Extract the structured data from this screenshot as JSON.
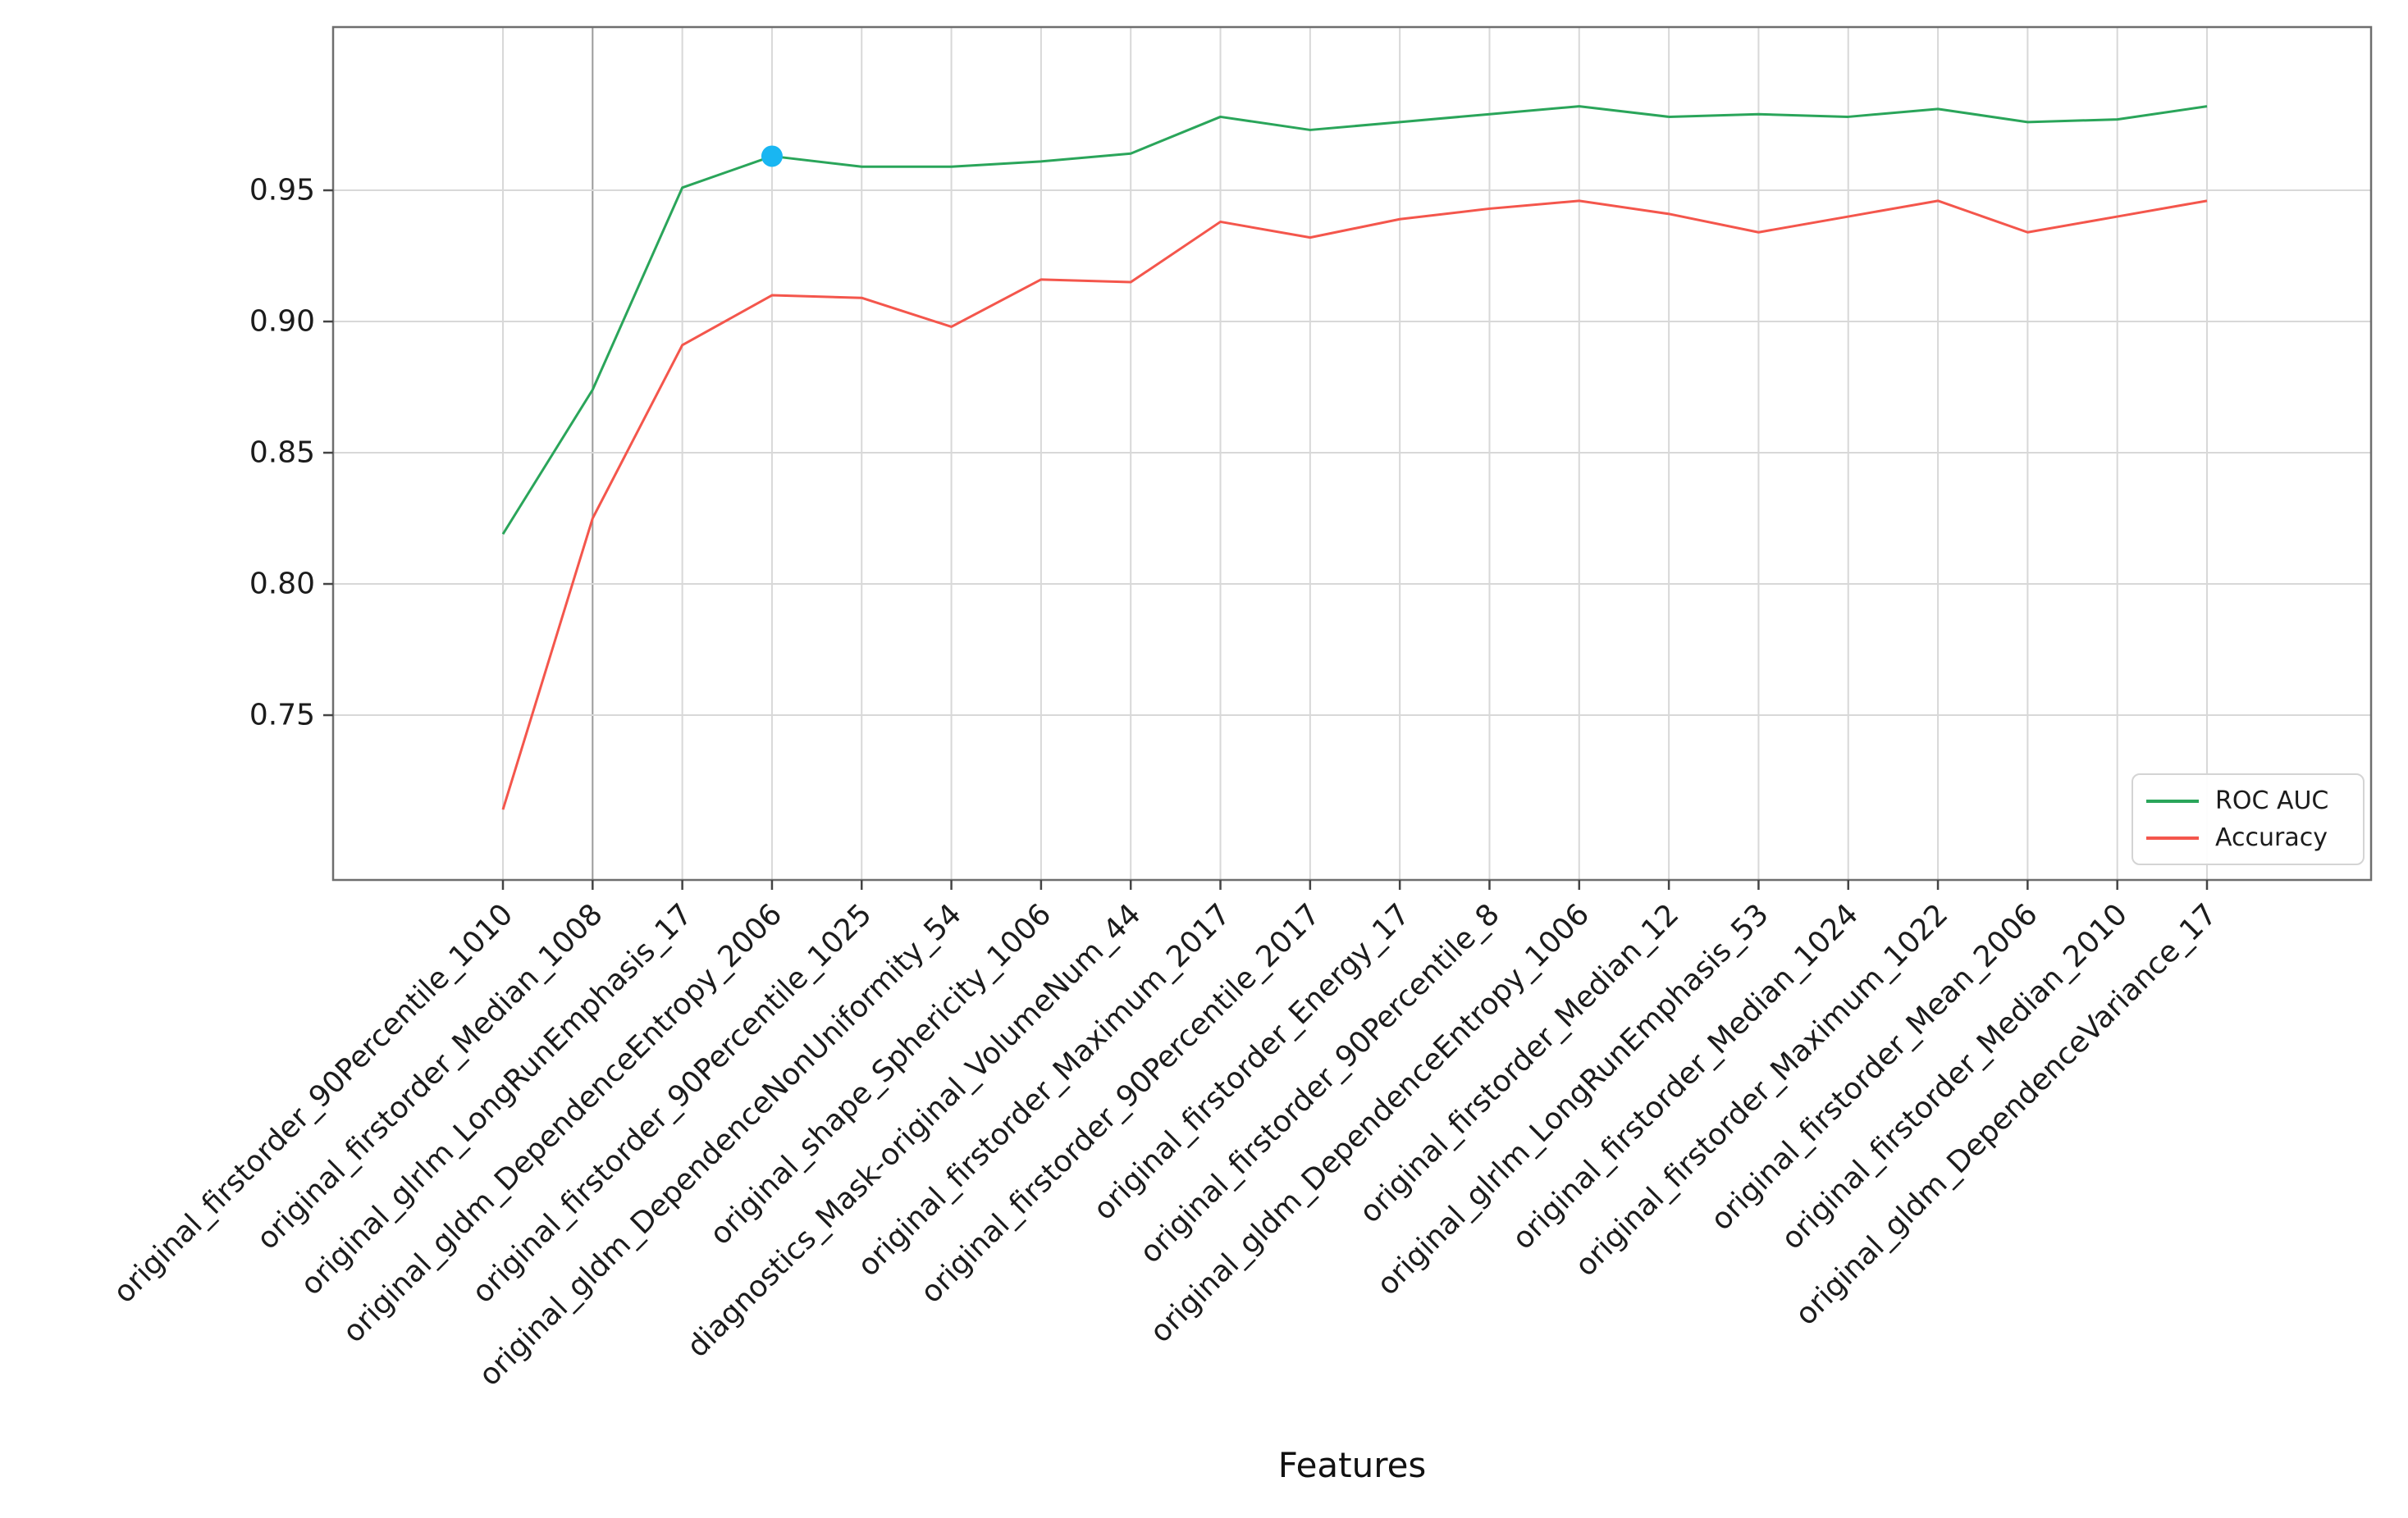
{
  "chart_data": {
    "type": "line",
    "title": "",
    "xlabel": "Features",
    "ylabel": "",
    "grid": true,
    "legend_position": "lower right",
    "ylim": [
      0.6872,
      1.0122
    ],
    "y_ticks": [
      0.75,
      0.8,
      0.85,
      0.9,
      0.95
    ],
    "categories": [
      "original_firstorder_90Percentile_1010",
      "original_firstorder_Median_1008",
      "original_glrlm_LongRunEmphasis_17",
      "original_gldm_DependenceEntropy_2006",
      "original_firstorder_90Percentile_1025",
      "original_gldm_DependenceNonUniformity_54",
      "original_shape_Sphericity_1006",
      "diagnostics_Mask-original_VolumeNum_44",
      "original_firstorder_Maximum_2017",
      "original_firstorder_90Percentile_2017",
      "original_firstorder_Energy_17",
      "original_firstorder_90Percentile_8",
      "original_gldm_DependenceEntropy_1006",
      "original_firstorder_Median_12",
      "original_glrlm_LongRunEmphasis_53",
      "original_firstorder_Median_1024",
      "original_firstorder_Maximum_1022",
      "original_firstorder_Mean_2006",
      "original_firstorder_Median_2010",
      "original_gldm_DependenceVariance_17"
    ],
    "series": [
      {
        "name": "ROC AUC",
        "color": "#2aa55a",
        "values": [
          0.819,
          0.874,
          0.951,
          0.963,
          0.959,
          0.959,
          0.961,
          0.964,
          0.978,
          0.973,
          0.976,
          0.979,
          0.982,
          0.978,
          0.979,
          0.978,
          0.981,
          0.976,
          0.977,
          0.982
        ]
      },
      {
        "name": "Accuracy",
        "color": "#f4564c",
        "values": [
          0.714,
          0.825,
          0.891,
          0.91,
          0.909,
          0.898,
          0.916,
          0.915,
          0.938,
          0.932,
          0.939,
          0.943,
          0.946,
          0.941,
          0.934,
          0.94,
          0.946,
          0.934,
          0.94,
          0.946
        ]
      }
    ],
    "highlight_point": {
      "series": "ROC AUC",
      "index": 3,
      "value": 0.963,
      "color": "#19b6f2"
    }
  },
  "colors": {
    "gridline": "#d8d8d8",
    "gridline_emphasis": "#9b9b9b",
    "spine": "#6e6e6e",
    "tick": "#444444",
    "tick_label": "#1c1c1c"
  }
}
